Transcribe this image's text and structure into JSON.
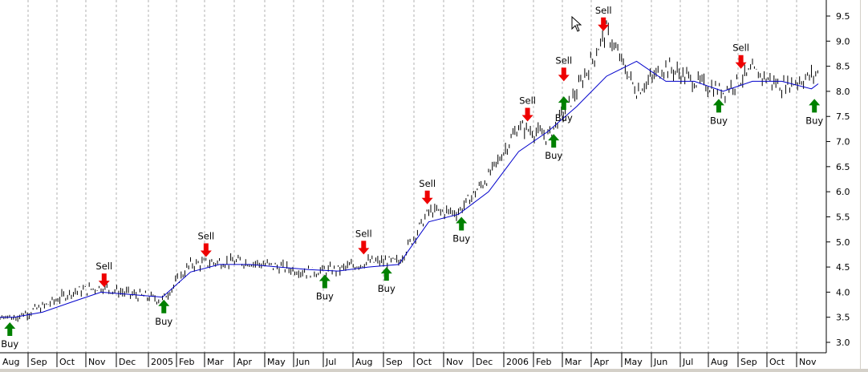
{
  "chart_data": {
    "type": "line",
    "x": [
      "Aug",
      "Sep",
      "Oct",
      "Nov",
      "Dec",
      "2005",
      "Feb",
      "Mar",
      "Apr",
      "May",
      "Jun",
      "Jul",
      "Aug",
      "Sep",
      "Oct",
      "Nov",
      "Dec",
      "2006",
      "Feb",
      "Mar",
      "Apr",
      "May",
      "Jun",
      "Jul",
      "Aug",
      "Sep",
      "Oct",
      "Nov"
    ],
    "y_ticks": [
      "9.5",
      "9.0",
      "8.5",
      "8.0",
      "7.5",
      "7.0",
      "6.5",
      "6.0",
      "5.5",
      "5.0",
      "4.5",
      "4.0",
      "3.5",
      "3.0"
    ],
    "ylim": [
      2.9,
      9.65
    ],
    "grid": "vertical dashed",
    "series": [
      {
        "values": [
          3.5,
          3.7,
          4.0,
          4.1,
          3.95,
          3.85,
          4.55,
          4.6,
          4.6,
          4.5,
          4.4,
          4.45,
          4.6,
          4.6,
          5.6,
          5.6,
          6.3,
          7.3,
          7.1,
          8.0,
          9.2,
          8.0,
          8.5,
          8.2,
          8.0,
          8.4,
          8.1,
          8.3
        ]
      },
      {
        "values": [
          3.5,
          3.6,
          3.8,
          4.0,
          3.95,
          3.9,
          4.4,
          4.55,
          4.55,
          4.5,
          4.45,
          4.42,
          4.5,
          4.55,
          5.4,
          5.55,
          6.0,
          6.8,
          7.2,
          7.7,
          8.3,
          8.6,
          8.2,
          8.2,
          8.0,
          8.2,
          8.2,
          8.05
        ]
      }
    ],
    "signals": [
      {
        "label": "Buy",
        "type": "buy",
        "x": "Aug",
        "y": 3.4
      },
      {
        "label": "Sell",
        "type": "sell",
        "x": "Nov",
        "y": 4.1
      },
      {
        "label": "Buy",
        "type": "buy",
        "x": "2005",
        "y": 3.85
      },
      {
        "label": "Sell",
        "type": "sell",
        "x": "Mar",
        "y": 4.7
      },
      {
        "label": "Buy",
        "type": "buy",
        "x": "Jul",
        "y": 4.35
      },
      {
        "label": "Sell",
        "type": "sell",
        "x": "Aug",
        "y": 4.75
      },
      {
        "label": "Buy",
        "type": "buy",
        "x": "Sep",
        "y": 4.5
      },
      {
        "label": "Sell",
        "type": "sell",
        "x": "Oct",
        "y": 5.75
      },
      {
        "label": "Buy",
        "type": "buy",
        "x": "Nov",
        "y": 5.5
      },
      {
        "label": "Sell",
        "type": "sell",
        "x": "2006",
        "y": 7.4
      },
      {
        "label": "Buy",
        "type": "buy",
        "x": "Feb",
        "y": 7.15
      },
      {
        "label": "Sell",
        "type": "sell",
        "x": "Mar",
        "y": 8.2
      },
      {
        "label": "Buy",
        "type": "buy",
        "x": "Mar",
        "y": 7.9
      },
      {
        "label": "Sell",
        "type": "sell",
        "x": "Apr",
        "y": 9.2
      },
      {
        "label": "Buy",
        "type": "buy",
        "x": "Aug",
        "y": 7.85
      },
      {
        "label": "Sell",
        "type": "sell",
        "x": "Sep",
        "y": 8.45
      },
      {
        "label": "Buy",
        "type": "buy",
        "x": "Nov",
        "y": 7.85
      }
    ],
    "colors": {
      "price": "#000000",
      "average": "#0000cc",
      "buy": "#008000",
      "sell": "#ee0000",
      "grid": "#b0b0b0"
    }
  }
}
